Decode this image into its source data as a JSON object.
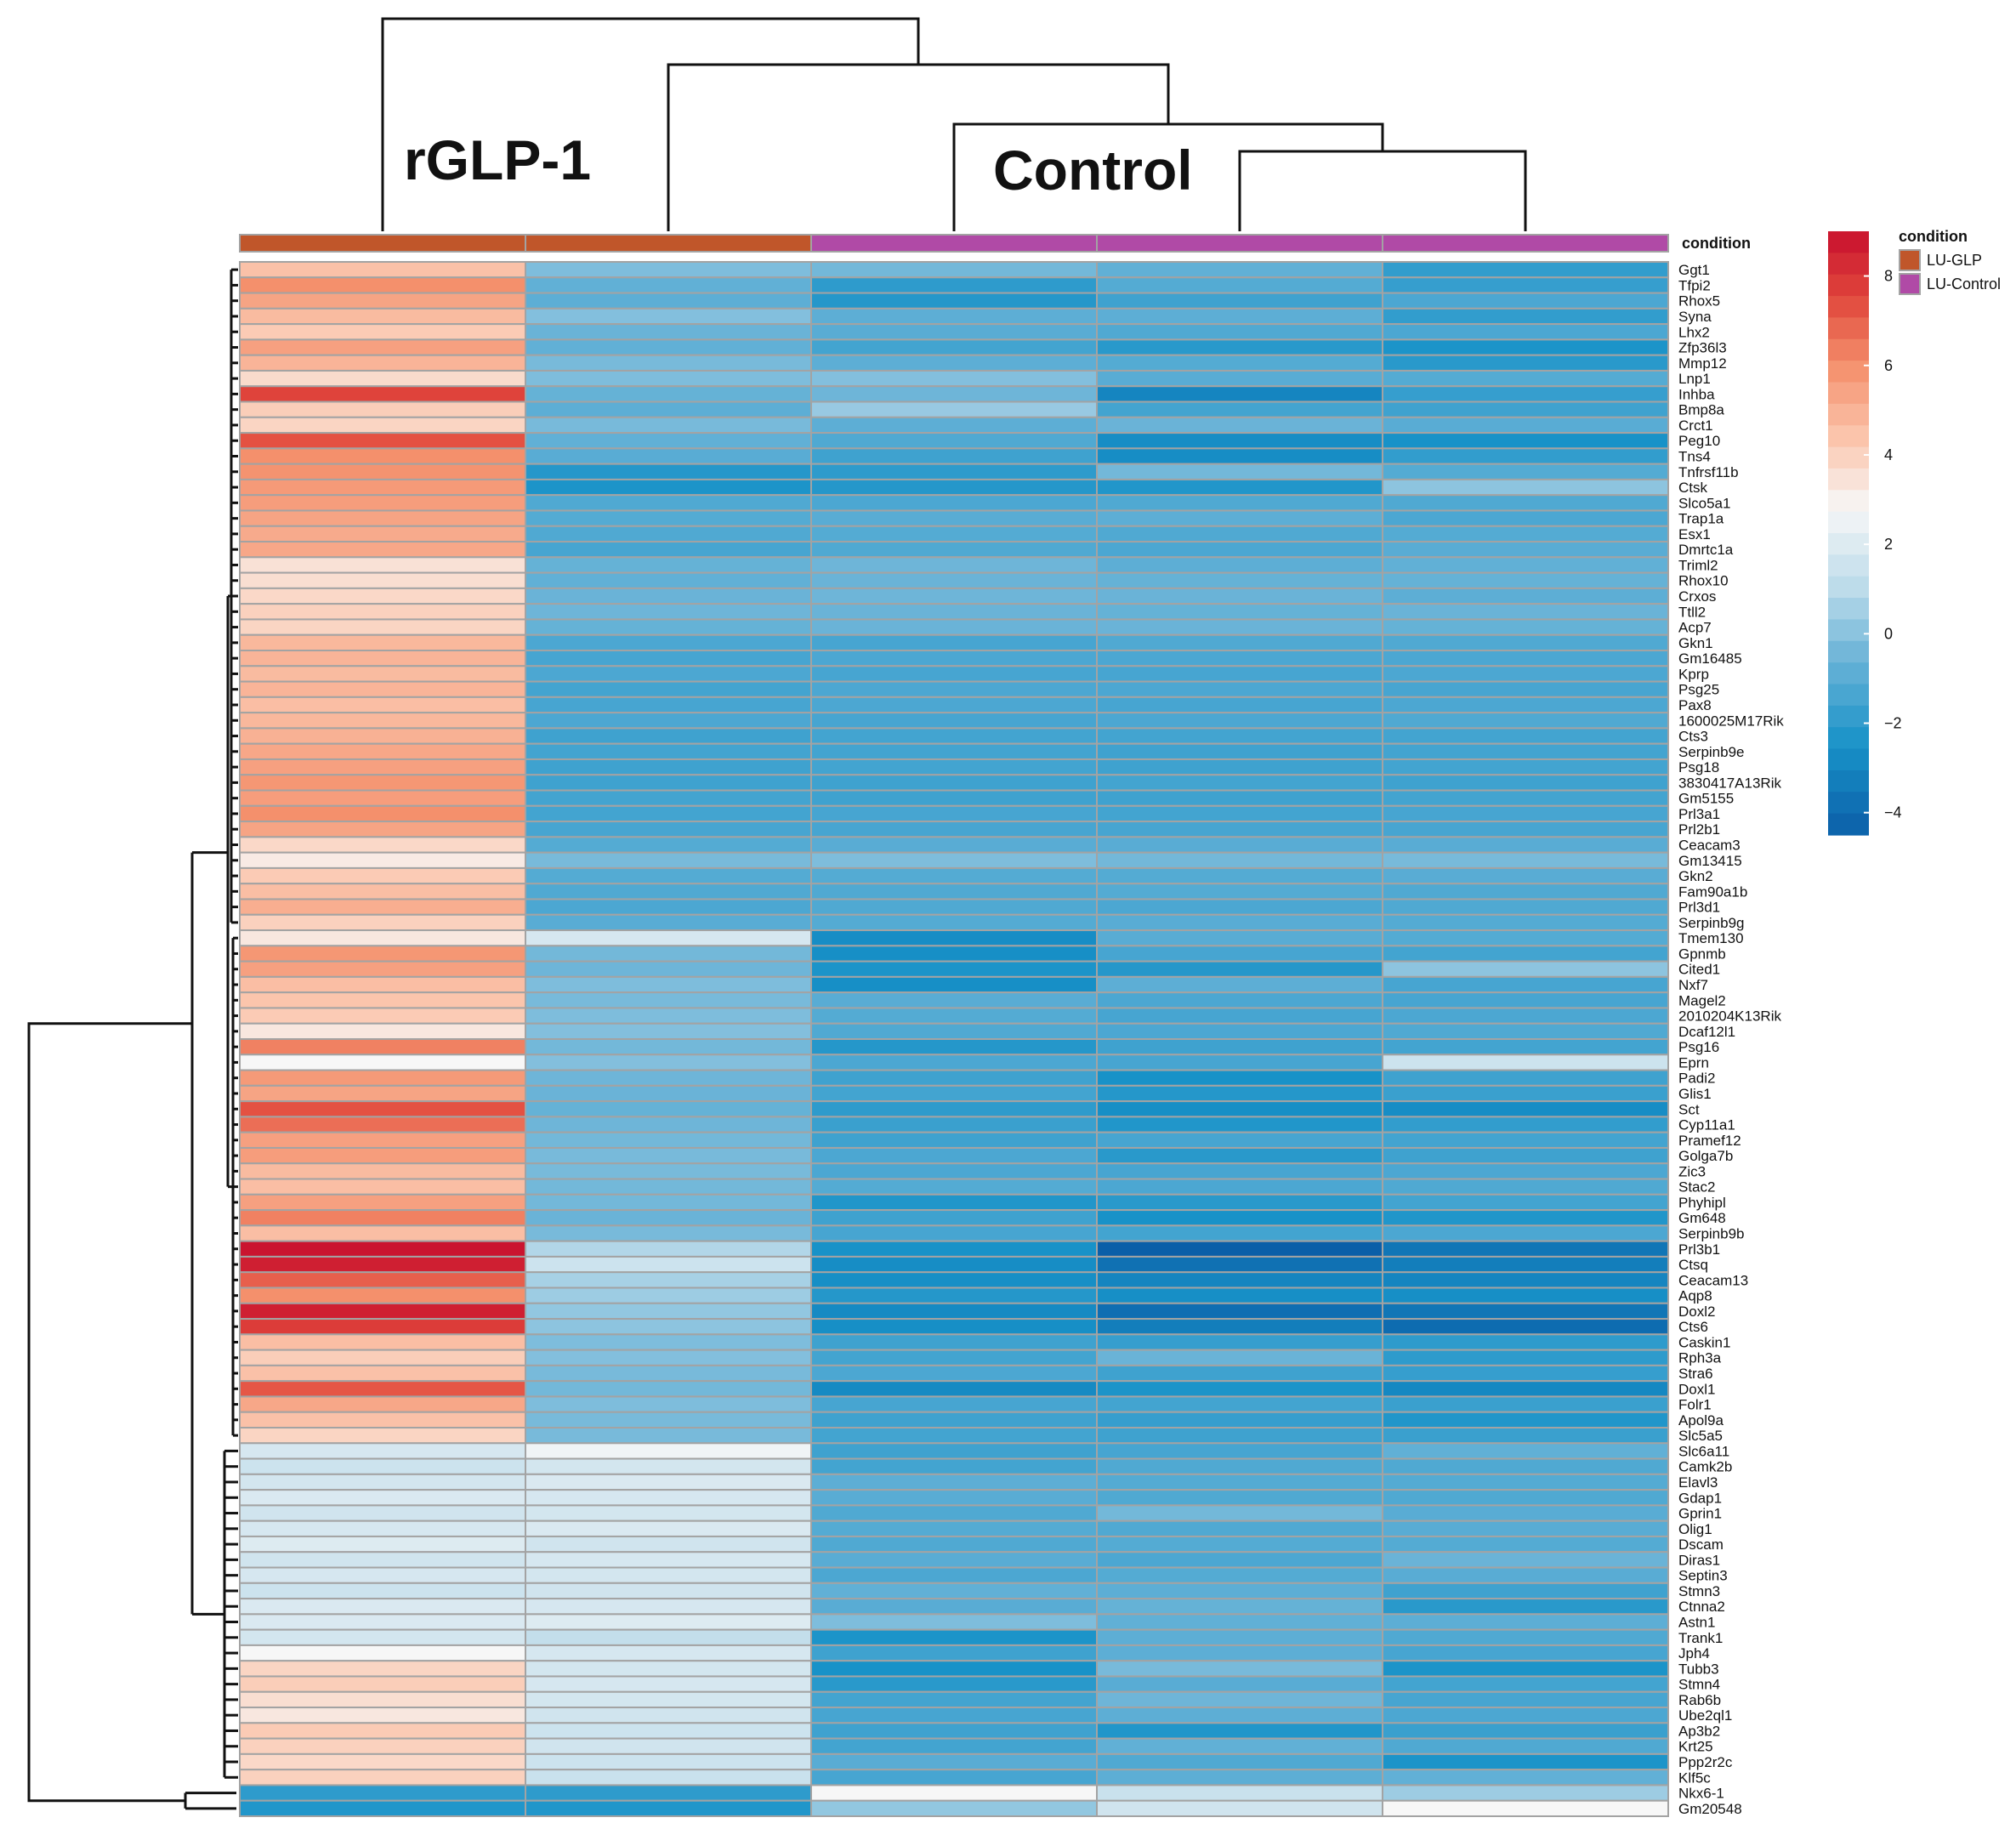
{
  "chart_data": {
    "type": "heatmap",
    "group_labels": [
      "rGLP-1",
      "Control"
    ],
    "annotation_title": "condition",
    "legend_title": "condition",
    "legend_entries": [
      {
        "label": "LU-GLP",
        "color": "#c0562a"
      },
      {
        "label": "LU-Control",
        "color": "#b04aa6"
      }
    ],
    "columns": [
      {
        "condition": "LU-GLP"
      },
      {
        "condition": "LU-GLP"
      },
      {
        "condition": "LU-Control"
      },
      {
        "condition": "LU-Control"
      },
      {
        "condition": "LU-Control"
      }
    ],
    "color_scale": {
      "min": -4.5,
      "max": 9.0,
      "ticks": [
        -4,
        -2,
        0,
        2,
        4,
        6,
        8
      ],
      "tick_labels": [
        "−4",
        "−2",
        "0",
        "2",
        "4",
        "6",
        "8"
      ],
      "stops": [
        {
          "v": -4.5,
          "c": "#0b5fa8"
        },
        {
          "v": -2.5,
          "c": "#1892c8"
        },
        {
          "v": -0.5,
          "c": "#6eb5d8"
        },
        {
          "v": 1.0,
          "c": "#bcdbea"
        },
        {
          "v": 2.8,
          "c": "#f7f7f7"
        },
        {
          "v": 4.3,
          "c": "#fbc8b0"
        },
        {
          "v": 6.0,
          "c": "#f4906c"
        },
        {
          "v": 7.5,
          "c": "#e1473c"
        },
        {
          "v": 9.0,
          "c": "#c8102e"
        }
      ]
    },
    "rows": [
      "Ggt1",
      "Tfpi2",
      "Rhox5",
      "Syna",
      "Lhx2",
      "Zfp36l3",
      "Mmp12",
      "Lnp1",
      "Inhba",
      "Bmp8a",
      "Crct1",
      "Peg10",
      "Tns4",
      "Tnfrsf11b",
      "Ctsk",
      "Slco5a1",
      "Trap1a",
      "Esx1",
      "Dmrtc1a",
      "Triml2",
      "Rhox10",
      "Crxos",
      "Ttll2",
      "Acp7",
      "Gkn1",
      "Gm16485",
      "Kprp",
      "Psg25",
      "Pax8",
      "1600025M17Rik",
      "Cts3",
      "Serpinb9e",
      "Psg18",
      "3830417A13Rik",
      "Gm5155",
      "Prl3a1",
      "Prl2b1",
      "Ceacam3",
      "Gm13415",
      "Gkn2",
      "Fam90a1b",
      "Prl3d1",
      "Serpinb9g",
      "Tmem130",
      "Gpnmb",
      "Cited1",
      "Nxf7",
      "Magel2",
      "2010204K13Rik",
      "Dcaf12l1",
      "Psg16",
      "Eprn",
      "Padi2",
      "Glis1",
      "Sct",
      "Cyp11a1",
      "Pramef12",
      "Golga7b",
      "Zic3",
      "Stac2",
      "Phyhipl",
      "Gm648",
      "Serpinb9b",
      "Prl3b1",
      "Ctsq",
      "Ceacam13",
      "Aqp8",
      "Doxl2",
      "Cts6",
      "Caskin1",
      "Rph3a",
      "Stra6",
      "Doxl1",
      "Folr1",
      "Apol9a",
      "Slc5a5",
      "Slc6a11",
      "Camk2b",
      "Elavl3",
      "Gdap1",
      "Gprin1",
      "Olig1",
      "Dscam",
      "Diras1",
      "Septin3",
      "Stmn3",
      "Ctnna2",
      "Astn1",
      "Trank1",
      "Jph4",
      "Tubb3",
      "Stmn4",
      "Rab6b",
      "Ube2ql1",
      "Ap3b2",
      "Krt25",
      "Ppp2r2c",
      "Klf5c",
      "Nkx6-1",
      "Gm20548"
    ],
    "values": [
      [
        4.5,
        -0.2,
        -0.4,
        -0.8,
        -1.9
      ],
      [
        6.0,
        -0.8,
        -2.0,
        -1.1,
        -1.8
      ],
      [
        5.4,
        -0.9,
        -2.2,
        -1.6,
        -1.3
      ],
      [
        4.7,
        -0.1,
        -0.9,
        -0.9,
        -1.9
      ],
      [
        4.2,
        -0.6,
        -1.0,
        -1.2,
        -1.3
      ],
      [
        5.5,
        -0.8,
        -1.5,
        -2.1,
        -2.4
      ],
      [
        4.9,
        -0.3,
        -0.9,
        -1.1,
        -2.1
      ],
      [
        3.7,
        -0.2,
        -0.1,
        -1.0,
        -1.1
      ],
      [
        7.6,
        -0.7,
        -0.5,
        -3.0,
        -1.8
      ],
      [
        4.1,
        -0.9,
        0.3,
        -1.5,
        -1.6
      ],
      [
        3.9,
        -0.3,
        -0.9,
        -0.6,
        -1.0
      ],
      [
        7.3,
        -0.8,
        -1.2,
        -2.7,
        -2.5
      ],
      [
        6.0,
        -1.0,
        -1.6,
        -2.7,
        -1.9
      ],
      [
        5.9,
        -2.2,
        -2.0,
        -0.4,
        -1.1
      ],
      [
        5.7,
        -2.4,
        -2.2,
        -2.3,
        0.1
      ],
      [
        5.6,
        -1.2,
        -1.3,
        -1.2,
        -1.2
      ],
      [
        5.4,
        -1.1,
        -1.0,
        -0.9,
        -1.3
      ],
      [
        5.2,
        -1.2,
        -1.1,
        -1.2,
        -1.1
      ],
      [
        5.3,
        -1.4,
        -1.2,
        -1.3,
        -1.0
      ],
      [
        3.5,
        -0.7,
        -0.5,
        -0.9,
        -0.8
      ],
      [
        3.6,
        -0.8,
        -0.6,
        -0.7,
        -0.7
      ],
      [
        3.8,
        -0.6,
        -0.5,
        -0.6,
        -0.9
      ],
      [
        4.0,
        -0.5,
        -0.6,
        -0.7,
        -0.6
      ],
      [
        3.9,
        -0.7,
        -0.6,
        -0.6,
        -0.7
      ],
      [
        4.8,
        -1.3,
        -1.4,
        -1.2,
        -1.2
      ],
      [
        4.9,
        -1.4,
        -1.3,
        -1.3,
        -1.3
      ],
      [
        4.7,
        -1.3,
        -1.4,
        -1.4,
        -1.3
      ],
      [
        4.9,
        -1.5,
        -1.3,
        -1.3,
        -1.4
      ],
      [
        4.6,
        -1.4,
        -1.3,
        -1.4,
        -1.3
      ],
      [
        4.8,
        -1.3,
        -1.4,
        -1.3,
        -1.2
      ],
      [
        5.0,
        -1.6,
        -1.5,
        -1.5,
        -1.5
      ],
      [
        5.3,
        -1.5,
        -1.5,
        -1.6,
        -1.5
      ],
      [
        5.5,
        -1.6,
        -1.5,
        -1.6,
        -1.5
      ],
      [
        5.8,
        -1.6,
        -1.6,
        -1.5,
        -1.6
      ],
      [
        5.6,
        -1.5,
        -1.6,
        -1.6,
        -1.5
      ],
      [
        6.0,
        -1.5,
        -1.4,
        -1.5,
        -1.4
      ],
      [
        5.4,
        -1.4,
        -1.4,
        -1.4,
        -1.4
      ],
      [
        3.8,
        -1.1,
        -1.0,
        -1.0,
        -1.0
      ],
      [
        3.2,
        -0.3,
        -0.2,
        -0.4,
        -0.3
      ],
      [
        4.2,
        -1.1,
        -1.1,
        -1.1,
        -1.0
      ],
      [
        4.6,
        -1.2,
        -1.2,
        -1.1,
        -1.2
      ],
      [
        5.1,
        -1.3,
        -1.2,
        -1.3,
        -1.2
      ],
      [
        4.0,
        -1.0,
        -1.1,
        -1.0,
        -1.1
      ],
      [
        3.3,
        1.8,
        -2.7,
        -1.0,
        -1.1
      ],
      [
        5.8,
        -0.4,
        -2.6,
        -1.4,
        -1.5
      ],
      [
        5.5,
        -0.5,
        -2.4,
        -2.2,
        0.1
      ],
      [
        4.6,
        -0.2,
        -2.6,
        -0.9,
        -1.4
      ],
      [
        4.4,
        -0.3,
        -1.0,
        -1.3,
        -1.4
      ],
      [
        4.2,
        -0.2,
        -1.1,
        -1.4,
        -1.3
      ],
      [
        3.3,
        -0.1,
        -1.2,
        -1.3,
        -1.2
      ],
      [
        6.3,
        -0.4,
        -2.2,
        -1.6,
        -1.5
      ],
      [
        2.8,
        -0.1,
        -1.3,
        -1.4,
        1.5
      ],
      [
        5.7,
        -0.5,
        -1.6,
        -2.5,
        -1.6
      ],
      [
        5.4,
        -0.6,
        -1.5,
        -2.2,
        -1.7
      ],
      [
        7.3,
        -0.7,
        -2.0,
        -2.6,
        -2.7
      ],
      [
        6.7,
        -0.5,
        -1.7,
        -2.3,
        -1.9
      ],
      [
        5.5,
        -0.4,
        -1.6,
        -1.4,
        -1.5
      ],
      [
        5.6,
        -0.3,
        -1.3,
        -2.1,
        -1.6
      ],
      [
        4.7,
        -0.3,
        -1.3,
        -1.4,
        -1.3
      ],
      [
        4.6,
        -0.4,
        -1.1,
        -1.3,
        -1.2
      ],
      [
        5.5,
        -0.4,
        -2.3,
        -2.1,
        -1.5
      ],
      [
        6.3,
        -0.6,
        -1.6,
        -2.5,
        -2.3
      ],
      [
        4.6,
        -0.3,
        -1.4,
        -1.5,
        -1.3
      ],
      [
        8.9,
        0.8,
        -2.5,
        -4.5,
        -3.6
      ],
      [
        8.6,
        1.5,
        -2.7,
        -3.8,
        -3.3
      ],
      [
        7.0,
        0.6,
        -2.6,
        -3.0,
        -3.0
      ],
      [
        6.0,
        0.4,
        -2.2,
        -2.6,
        -2.6
      ],
      [
        8.6,
        0.2,
        -2.8,
        -3.9,
        -3.6
      ],
      [
        7.8,
        0.1,
        -2.6,
        -3.3,
        -4.0
      ],
      [
        4.6,
        -0.2,
        -1.6,
        -1.8,
        -2.0
      ],
      [
        4.1,
        -0.1,
        -1.5,
        -0.6,
        -2.0
      ],
      [
        4.5,
        -0.3,
        -1.3,
        -1.6,
        -1.8
      ],
      [
        7.2,
        -0.4,
        -2.8,
        -2.4,
        -2.9
      ],
      [
        5.3,
        -0.2,
        -1.4,
        -1.5,
        -1.7
      ],
      [
        4.5,
        -0.3,
        -1.6,
        -1.8,
        -2.3
      ],
      [
        3.9,
        -0.3,
        -1.5,
        -1.6,
        -1.7
      ],
      [
        1.8,
        2.6,
        -1.6,
        -1.4,
        -0.8
      ],
      [
        1.5,
        1.7,
        -1.5,
        -1.2,
        -1.2
      ],
      [
        1.7,
        1.9,
        -0.9,
        -1.1,
        -1.1
      ],
      [
        1.9,
        1.8,
        -1.0,
        -1.2,
        -1.2
      ],
      [
        1.6,
        1.7,
        -1.2,
        -0.4,
        -1.0
      ],
      [
        1.8,
        1.9,
        -1.1,
        -1.2,
        -1.0
      ],
      [
        2.0,
        1.6,
        -1.2,
        -1.1,
        -1.1
      ],
      [
        1.6,
        1.8,
        -1.0,
        -1.3,
        -0.6
      ],
      [
        1.8,
        1.7,
        -1.3,
        -1.1,
        -1.0
      ],
      [
        1.5,
        1.6,
        -0.8,
        -0.9,
        -1.6
      ],
      [
        1.9,
        1.8,
        -1.0,
        -0.7,
        -2.1
      ],
      [
        1.9,
        2.0,
        -0.2,
        -0.8,
        -0.9
      ],
      [
        1.7,
        1.2,
        -2.4,
        -0.9,
        -1.2
      ],
      [
        2.8,
        1.8,
        -1.6,
        -0.9,
        -1.4
      ],
      [
        3.9,
        1.7,
        -2.5,
        -0.3,
        -2.4
      ],
      [
        4.1,
        1.8,
        -2.1,
        -1.0,
        -1.5
      ],
      [
        3.6,
        1.7,
        -1.5,
        -0.5,
        -1.4
      ],
      [
        3.3,
        1.6,
        -1.4,
        -0.9,
        -1.3
      ],
      [
        4.2,
        1.5,
        -1.6,
        -2.3,
        -1.7
      ],
      [
        4.0,
        1.6,
        -1.5,
        -0.8,
        -1.2
      ],
      [
        3.8,
        1.5,
        -1.0,
        -1.2,
        -2.4
      ],
      [
        4.0,
        1.4,
        -1.4,
        -0.9,
        -0.8
      ],
      [
        -2.0,
        -2.0,
        2.8,
        1.4,
        0.4
      ],
      [
        -2.3,
        -2.3,
        0.2,
        1.6,
        2.8
      ]
    ]
  }
}
